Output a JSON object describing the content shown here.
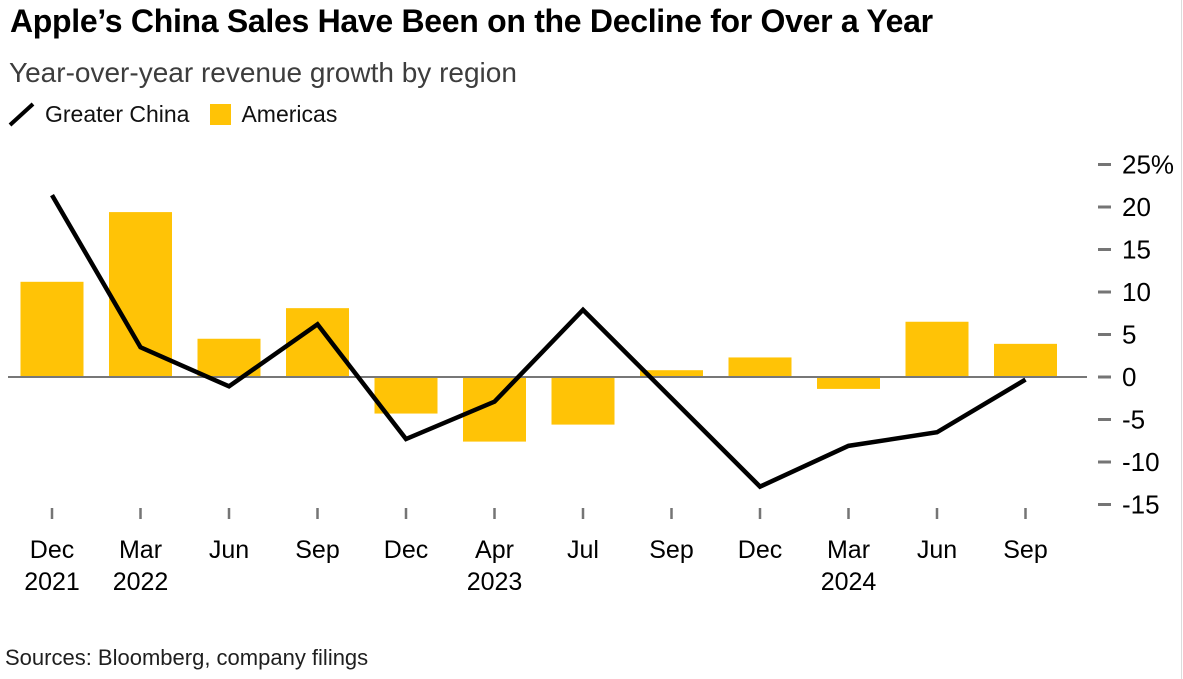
{
  "header": {
    "title": "Apple’s China Sales Have Been on the Decline for Over a Year",
    "subtitle": "Year-over-year revenue growth by region"
  },
  "legend": {
    "items": [
      {
        "label": "Greater China",
        "marker": "line-slash-icon",
        "color": "#000000"
      },
      {
        "label": "Americas",
        "marker": "square-swatch-icon",
        "color": "#FFC306"
      }
    ]
  },
  "chart_data": {
    "type": "combo-line-bar",
    "title": "Apple’s China Sales Have Been on the Decline for Over a Year",
    "subtitle": "Year-over-year revenue growth by region",
    "unit": "%",
    "categories": [
      "Dec 2021",
      "Mar 2022",
      "Jun 2022",
      "Sep 2022",
      "Dec 2022",
      "Apr 2023",
      "Jul 2023",
      "Sep 2023",
      "Dec 2023",
      "Mar 2024",
      "Jun 2024",
      "Sep 2024"
    ],
    "x_tick_labels": [
      {
        "month": "Dec",
        "year": "2021"
      },
      {
        "month": "Mar",
        "year": "2022"
      },
      {
        "month": "Jun",
        "year": ""
      },
      {
        "month": "Sep",
        "year": ""
      },
      {
        "month": "Dec",
        "year": ""
      },
      {
        "month": "Apr",
        "year": "2023"
      },
      {
        "month": "Jul",
        "year": ""
      },
      {
        "month": "Sep",
        "year": ""
      },
      {
        "month": "Dec",
        "year": ""
      },
      {
        "month": "Mar",
        "year": "2024"
      },
      {
        "month": "Jun",
        "year": ""
      },
      {
        "month": "Sep",
        "year": ""
      }
    ],
    "series": [
      {
        "name": "Greater China",
        "type": "line",
        "color": "#000000",
        "values": [
          21.4,
          3.5,
          -1.1,
          6.2,
          -7.3,
          -2.9,
          7.9,
          -2.5,
          -12.9,
          -8.1,
          -6.5,
          -0.3
        ]
      },
      {
        "name": "Americas",
        "type": "bar",
        "color": "#FFC306",
        "values": [
          11.2,
          19.4,
          4.5,
          8.1,
          -4.3,
          -7.6,
          -5.6,
          0.8,
          2.3,
          -1.4,
          6.5,
          3.9
        ]
      }
    ],
    "y_axis": {
      "position": "right",
      "ticks": [
        25,
        20,
        15,
        10,
        5,
        0,
        -5,
        -10,
        -15
      ],
      "tick_labels": [
        "25%",
        "20",
        "15",
        "10",
        "5",
        "0",
        "-5",
        "-10",
        "-15"
      ],
      "ylim": [
        -16,
        27
      ],
      "zero_baseline": true
    },
    "grid": false,
    "legend_position": "top-left",
    "colors": {
      "bar": "#FFC306",
      "line": "#000000",
      "zero_line": "#777777",
      "tick_mark": "#757575"
    }
  },
  "footer": {
    "sources": "Sources: Bloomberg, company filings"
  }
}
